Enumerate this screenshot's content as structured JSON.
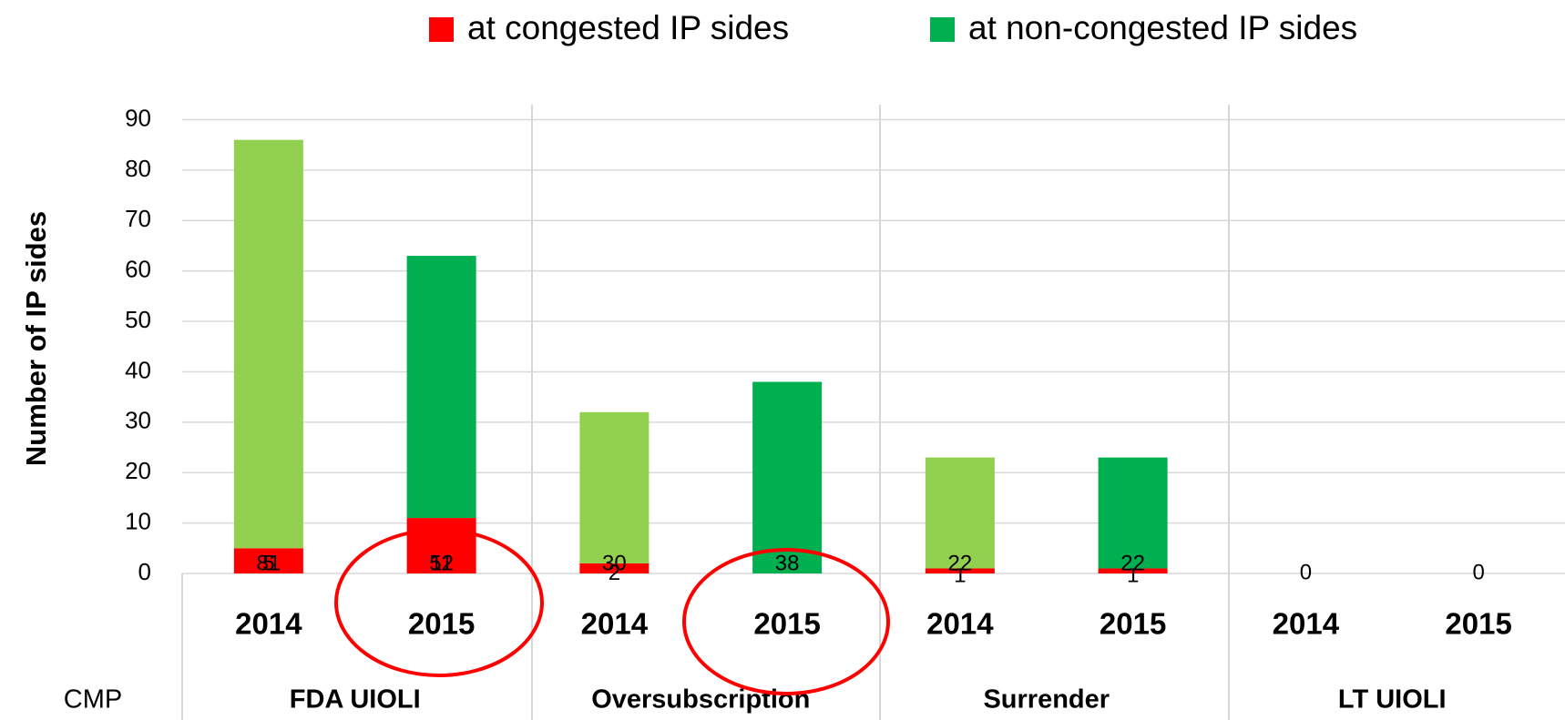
{
  "chart_data": {
    "type": "stacked_bar",
    "y_axis_label": "Number of IP sides",
    "categories": [
      "2014",
      "2015",
      "2014",
      "2015",
      "2014",
      "2015",
      "2014",
      "2015"
    ],
    "group_axis_label": "CMP",
    "groups": [
      "FDA UIOLI",
      "Oversubscription",
      "Surrender",
      "LT UIOLI"
    ],
    "series": [
      {
        "name": "at congested IP sides",
        "color": "#ff0000",
        "values": [
          5,
          11,
          2,
          0,
          1,
          1,
          0,
          0
        ]
      },
      {
        "name": "at non-congested IP sides",
        "color": "#00b050",
        "point_colors": [
          "#92d050",
          "#00b050",
          "#92d050",
          "#00b050",
          "#92d050",
          "#00b050",
          "#92d050",
          "#00b050"
        ],
        "values": [
          81,
          52,
          30,
          38,
          22,
          22,
          0,
          0
        ]
      }
    ],
    "ylim": [
      0,
      90
    ],
    "yticks": [
      0,
      10,
      20,
      30,
      40,
      50,
      60,
      70,
      80,
      90
    ],
    "grid": true
  }
}
